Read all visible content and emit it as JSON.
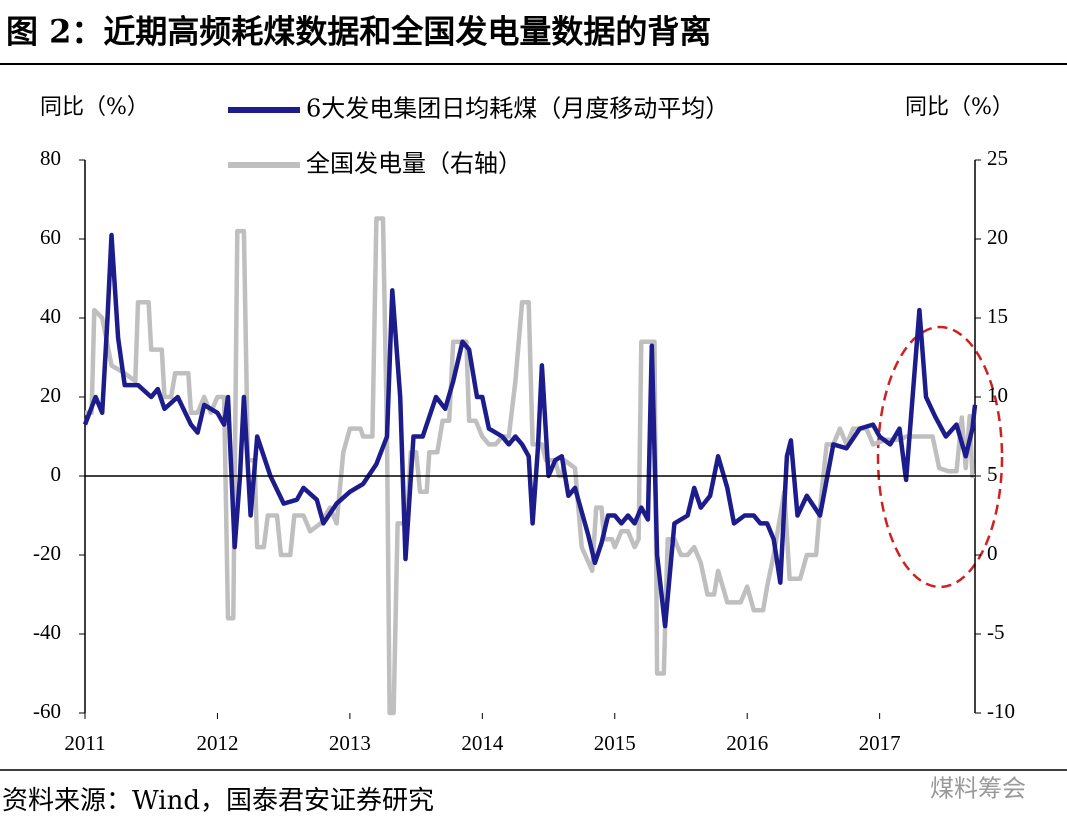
{
  "chart_data": {
    "type": "line",
    "title": "图 2：近期高频耗煤数据和全国发电量数据的背离",
    "y_label": "同比（%）",
    "y2_label": "同比（%）",
    "source": "资料来源：Wind，国泰君安证券研究",
    "watermark": "煤料筹会",
    "xlim": [
      2011,
      2017.72
    ],
    "xticks": [
      2011,
      2012,
      2013,
      2014,
      2015,
      2016,
      2017
    ],
    "ylim": [
      -60,
      80
    ],
    "yticks": [
      -60,
      -40,
      -20,
      0,
      20,
      40,
      60,
      80
    ],
    "y2lim": [
      -10,
      25
    ],
    "y2ticks": [
      -10,
      -5,
      0,
      5,
      10,
      15,
      20,
      25
    ],
    "series": [
      {
        "name": "6大发电集团日均耗煤（月度移动平均）",
        "color": "#1c1c8c",
        "axis": "y",
        "x": [
          2011.0,
          2011.08,
          2011.13,
          2011.17,
          2011.2,
          2011.25,
          2011.3,
          2011.4,
          2011.5,
          2011.55,
          2011.6,
          2011.7,
          2011.8,
          2011.85,
          2011.9,
          2012.0,
          2012.05,
          2012.08,
          2012.13,
          2012.17,
          2012.2,
          2012.25,
          2012.3,
          2012.4,
          2012.5,
          2012.6,
          2012.65,
          2012.75,
          2012.8,
          2012.9,
          2013.0,
          2013.1,
          2013.2,
          2013.28,
          2013.32,
          2013.38,
          2013.42,
          2013.48,
          2013.55,
          2013.6,
          2013.65,
          2013.72,
          2013.78,
          2013.85,
          2013.9,
          2013.96,
          2014.0,
          2014.05,
          2014.15,
          2014.2,
          2014.25,
          2014.3,
          2014.35,
          2014.38,
          2014.42,
          2014.45,
          2014.5,
          2014.55,
          2014.6,
          2014.65,
          2014.7,
          2014.8,
          2014.85,
          2014.9,
          2014.95,
          2015.0,
          2015.05,
          2015.1,
          2015.15,
          2015.2,
          2015.25,
          2015.28,
          2015.32,
          2015.38,
          2015.45,
          2015.55,
          2015.6,
          2015.65,
          2015.72,
          2015.78,
          2015.85,
          2015.9,
          2015.98,
          2016.05,
          2016.1,
          2016.15,
          2016.2,
          2016.25,
          2016.3,
          2016.33,
          2016.38,
          2016.45,
          2016.55,
          2016.65,
          2016.75,
          2016.85,
          2016.95,
          2017.0,
          2017.08,
          2017.15,
          2017.2,
          2017.3,
          2017.35,
          2017.42,
          2017.5,
          2017.58,
          2017.65,
          2017.7,
          2017.72
        ],
        "values": [
          13,
          20,
          16,
          40,
          61,
          35,
          23,
          23,
          20,
          22,
          17,
          20,
          13,
          11,
          18,
          16,
          13,
          20,
          -18,
          0,
          20,
          -10,
          10,
          0,
          -7,
          -6,
          -3,
          -6,
          -12,
          -7,
          -4,
          -2,
          3,
          10,
          47,
          20,
          -21,
          10,
          10,
          15,
          20,
          17,
          24,
          34,
          32,
          20,
          20,
          12,
          10,
          8,
          10,
          8,
          5,
          -12,
          7,
          28,
          0,
          4,
          5,
          -5,
          -3,
          -15,
          -22,
          -17,
          -10,
          -10,
          -12,
          -10,
          -12,
          -8,
          -11,
          33,
          -20,
          -38,
          -12,
          -10,
          -3,
          -8,
          -5,
          5,
          -3,
          -12,
          -10,
          -10,
          -12,
          -12,
          -16,
          -27,
          5,
          9,
          -10,
          -5,
          -10,
          8,
          7,
          12,
          13,
          10,
          8,
          12,
          -1,
          42,
          20,
          15,
          10,
          13,
          5,
          12,
          18
        ]
      },
      {
        "name": "全国发电量（右轴）",
        "color": "#bfbfbf",
        "axis": "y2",
        "x": [
          2011.0,
          2011.05,
          2011.07,
          2011.13,
          2011.2,
          2011.3,
          2011.38,
          2011.4,
          2011.48,
          2011.5,
          2011.58,
          2011.6,
          2011.65,
          2011.68,
          2011.78,
          2011.8,
          2011.85,
          2011.9,
          2011.95,
          2012.0,
          2012.05,
          2012.08,
          2012.12,
          2012.15,
          2012.2,
          2012.23,
          2012.28,
          2012.3,
          2012.35,
          2012.38,
          2012.45,
          2012.48,
          2012.55,
          2012.58,
          2012.65,
          2012.7,
          2012.78,
          2012.85,
          2012.9,
          2012.95,
          2013.0,
          2013.08,
          2013.1,
          2013.17,
          2013.2,
          2013.25,
          2013.28,
          2013.3,
          2013.33,
          2013.36,
          2013.43,
          2013.46,
          2013.5,
          2013.53,
          2013.58,
          2013.6,
          2013.66,
          2013.7,
          2013.75,
          2013.78,
          2013.88,
          2013.9,
          2013.95,
          2014.0,
          2014.05,
          2014.1,
          2014.15,
          2014.2,
          2014.25,
          2014.3,
          2014.35,
          2014.38,
          2014.45,
          2014.48,
          2014.55,
          2014.58,
          2014.6,
          2014.62,
          2014.7,
          2014.75,
          2014.83,
          2014.86,
          2014.9,
          2014.92,
          2014.98,
          2015.0,
          2015.05,
          2015.1,
          2015.15,
          2015.18,
          2015.2,
          2015.3,
          2015.32,
          2015.37,
          2015.4,
          2015.45,
          2015.5,
          2015.55,
          2015.6,
          2015.65,
          2015.7,
          2015.75,
          2015.78,
          2015.85,
          2015.95,
          2016.0,
          2016.05,
          2016.12,
          2016.15,
          2016.2,
          2016.28,
          2016.32,
          2016.4,
          2016.45,
          2016.52,
          2016.55,
          2016.6,
          2016.65,
          2016.7,
          2016.75,
          2016.8,
          2016.9,
          2016.95,
          2017.05,
          2017.15,
          2017.2,
          2017.3,
          2017.4,
          2017.45,
          2017.52,
          2017.58,
          2017.62,
          2017.65,
          2017.68,
          2017.7,
          2017.72
        ],
        "values": [
          9,
          9,
          15.5,
          15,
          12,
          11.5,
          11,
          16,
          16,
          13,
          13,
          10,
          10,
          11.5,
          11.5,
          9,
          9,
          10,
          9,
          10,
          10,
          -4,
          -4,
          20.5,
          20.5,
          6,
          6,
          0.5,
          0.5,
          2.5,
          2.5,
          0,
          0,
          2.5,
          2.5,
          1.5,
          2,
          3,
          2,
          6.5,
          8,
          8,
          7.5,
          7.5,
          21.3,
          21.3,
          7.5,
          -10,
          -10,
          2,
          2,
          6.5,
          6.5,
          4,
          4,
          6.5,
          6.5,
          8.5,
          8.5,
          13.5,
          13.5,
          8.5,
          8.5,
          7.5,
          7,
          7,
          7.5,
          7.5,
          11,
          16,
          16,
          7,
          7,
          6,
          6,
          5,
          5,
          6,
          5.5,
          0.5,
          -1,
          3,
          3,
          1,
          1,
          0.5,
          1.5,
          1.5,
          0.5,
          1,
          13.5,
          13.5,
          -7.5,
          -7.5,
          1,
          1,
          0,
          0,
          0.5,
          -0.5,
          -2.5,
          -2.5,
          -1,
          -3,
          -3,
          -2,
          -3.5,
          -3.5,
          -2,
          0,
          4,
          -1.5,
          -1.5,
          0,
          0,
          3,
          7,
          7,
          8,
          7,
          8,
          8,
          7,
          7.3,
          7.3,
          7.5,
          7.5,
          7.5,
          5.5,
          5.3,
          5.3,
          8.7,
          5.5,
          8.8,
          5,
          5
        ]
      }
    ]
  }
}
